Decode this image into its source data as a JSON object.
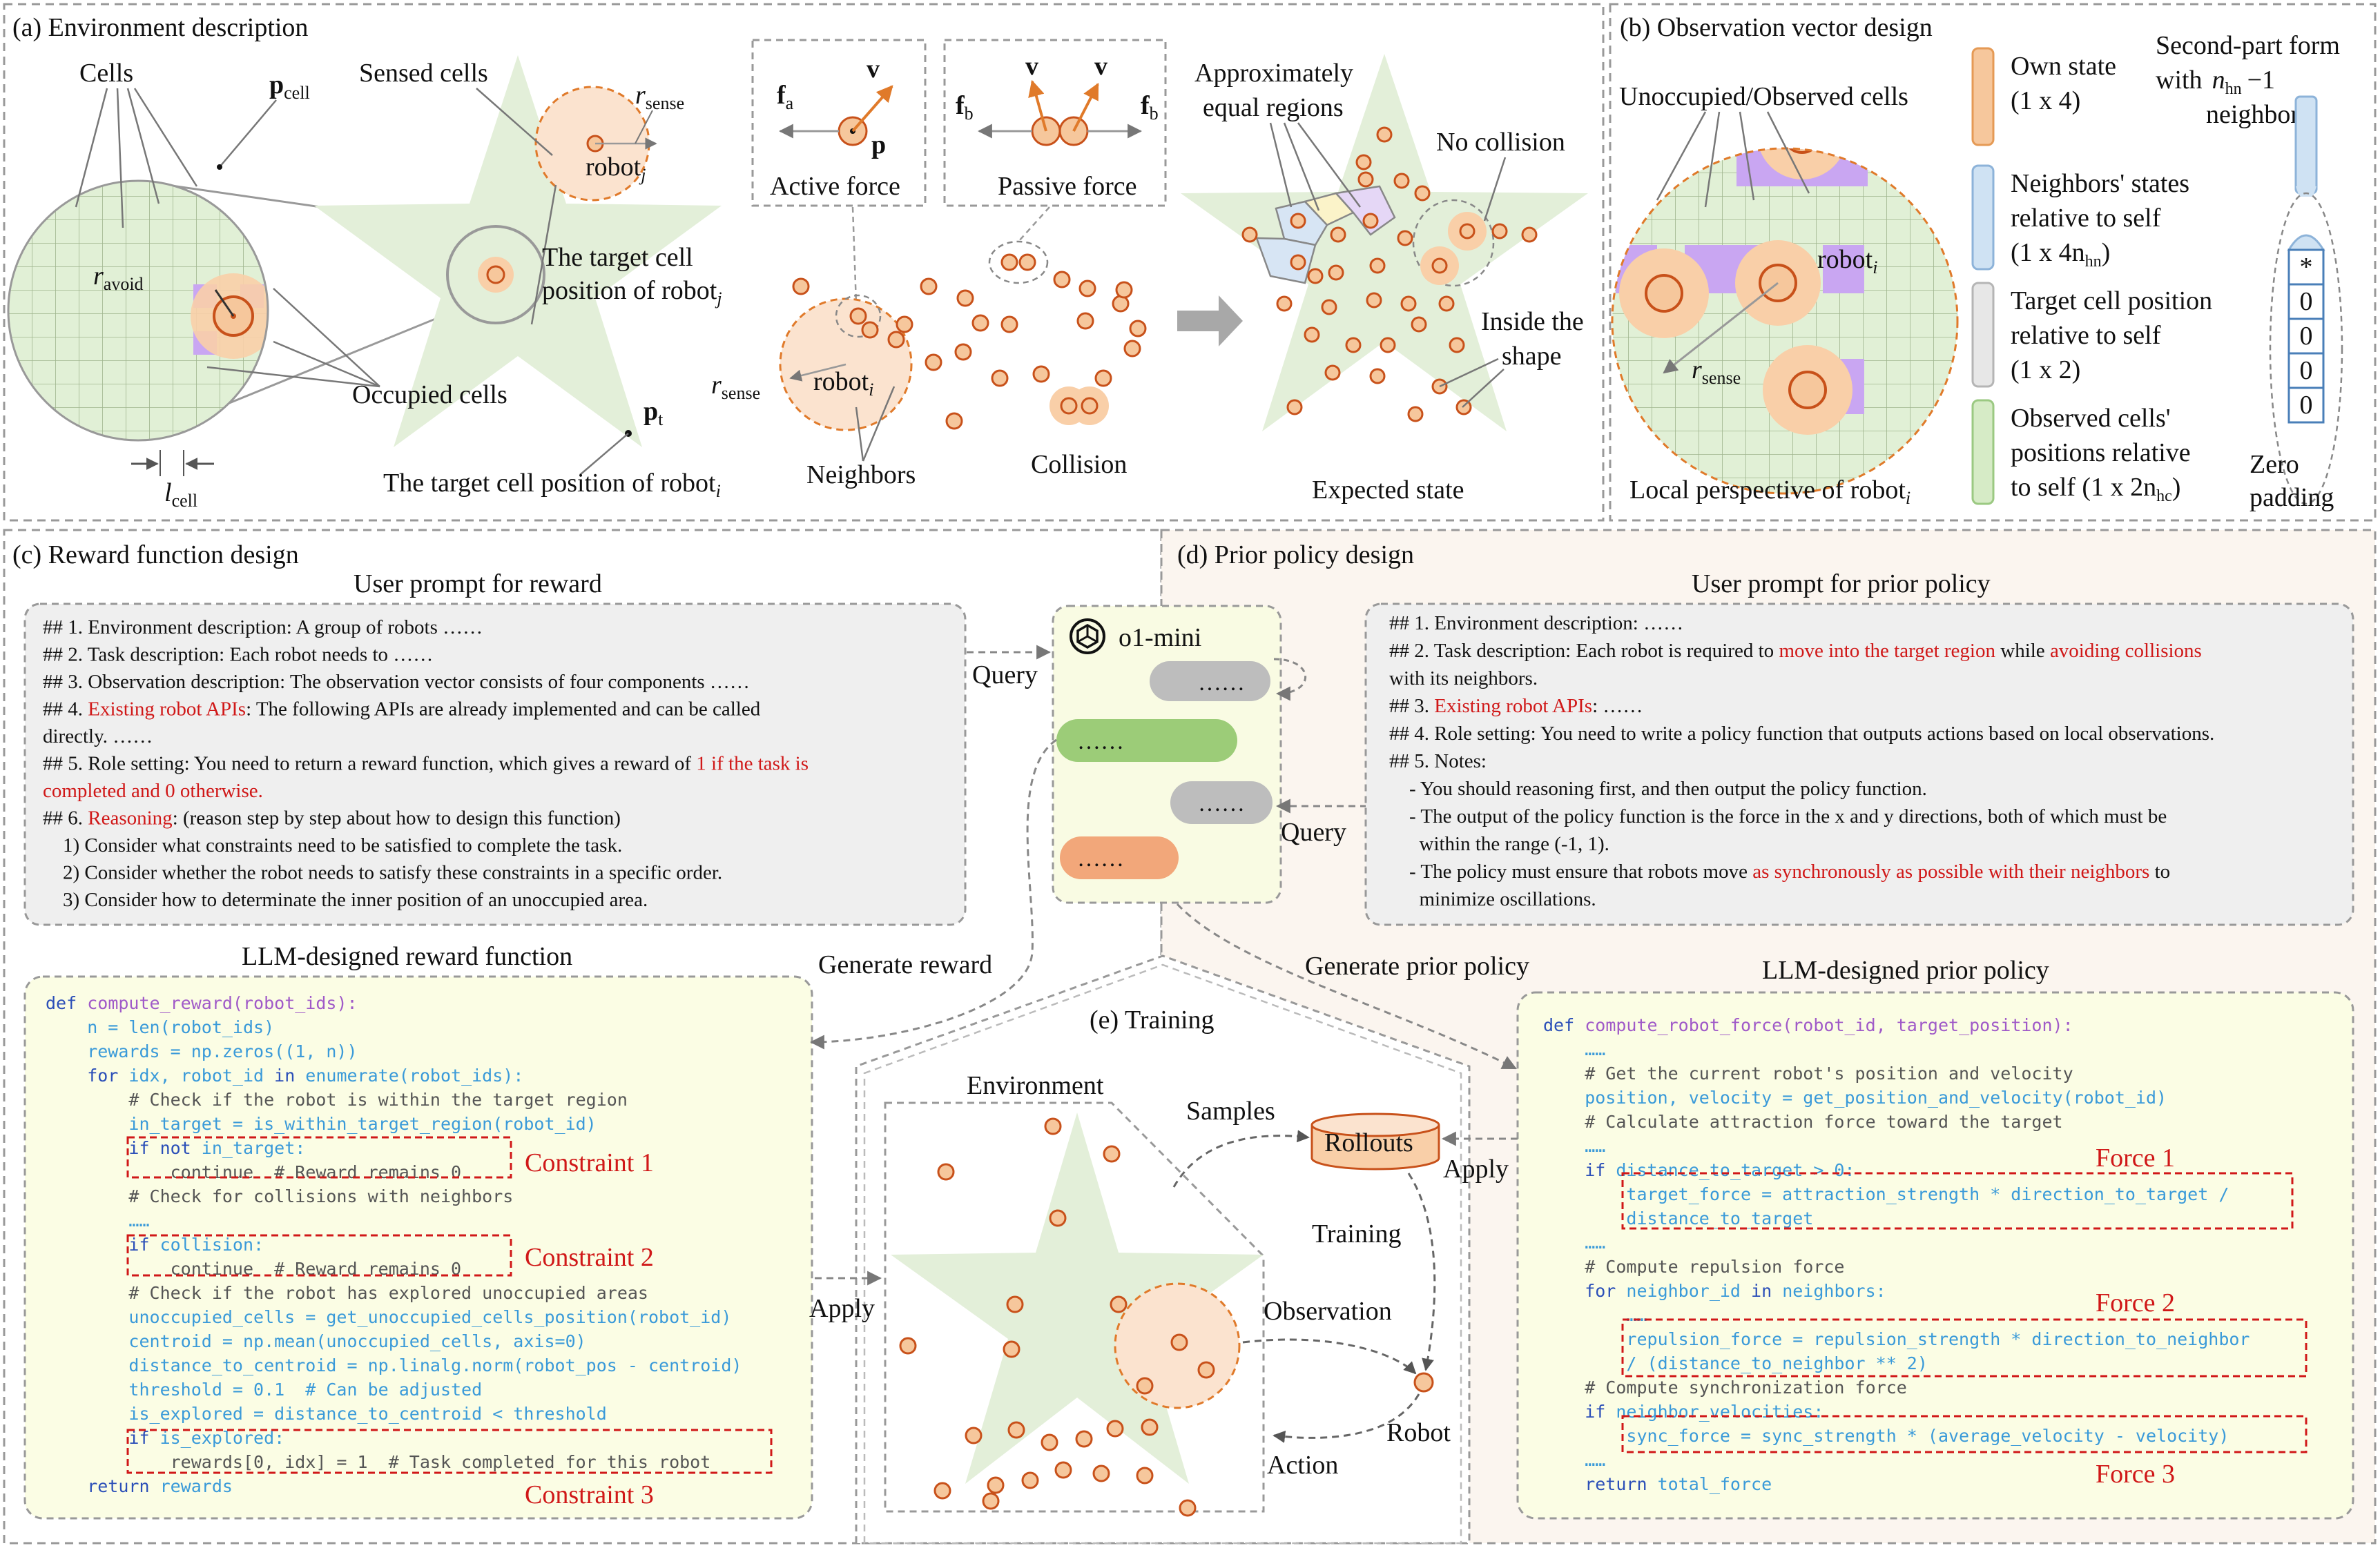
{
  "panel_a": {
    "title": "(a) Environment description",
    "cells": "Cells",
    "p_cell": "p",
    "p_cell_sub": "cell",
    "r_avoid": "r",
    "r_avoid_sub": "avoid",
    "l_cell": "l",
    "l_cell_sub": "cell",
    "occupied": "Occupied cells",
    "sensed": "Sensed cells",
    "r_sense": "r",
    "r_sense_sub": "sense",
    "robot_j": "robot",
    "robot_j_sub": "j",
    "target_j_1": "The target cell",
    "target_j_2": "position of robot",
    "target_j_sub": "j",
    "p_t": "p",
    "p_t_sub": "t",
    "target_i": "The target cell position of robot",
    "target_i_sub": "i",
    "active_force": "Active force",
    "passive_force": "Passive force",
    "f_a": "f",
    "f_a_sub": "a",
    "f_b": "f",
    "f_b_sub": "b",
    "v": "v",
    "p": "p",
    "robot_i": "robot",
    "robot_i_sub": "i",
    "neighbors": "Neighbors",
    "collision": "Collision",
    "approx_1": "Approximately",
    "approx_2": "equal regions",
    "no_collision": "No collision",
    "inside_1": "Inside the",
    "inside_2": "shape",
    "expected": "Expected state"
  },
  "panel_b": {
    "title": "(b) Observation vector design",
    "unoccupied": "Unoccupied/Observed cells",
    "robot_i": "robot",
    "robot_i_sub": "i",
    "r_sense": "r",
    "r_sense_sub": "sense",
    "local": "Local perspective of robot",
    "local_sub": "i",
    "legend": [
      {
        "lines": [
          "Own state",
          "(1 x 4)"
        ],
        "color": "#f6c79c",
        "stroke": "#e59a55"
      },
      {
        "lines": [
          "Neighbors' states",
          "relative to self",
          "(1 x 4n"
        ],
        "tail": "hn",
        "color": "#cfe2f3",
        "stroke": "#8db3d9"
      },
      {
        "lines": [
          "Target cell position",
          "relative to self",
          "(1 x 2)"
        ],
        "color": "#e7e7e7",
        "stroke": "#b5b5b5"
      },
      {
        "lines": [
          "Observed cells'",
          "positions relative",
          "to self (1 x 2n"
        ],
        "tail": "hc",
        "color": "#d6ebc6",
        "stroke": "#9bc982"
      }
    ],
    "second_1": "Second-part form",
    "second_2": "with",
    "second_n": "n",
    "second_sub": "hn",
    "second_3": "−1",
    "second_4": "neighbors:",
    "zero_1": "Zero",
    "zero_2": "padding",
    "vector": [
      "*",
      "0",
      "0",
      "0",
      "0"
    ]
  },
  "panel_c": {
    "title": "(c) Reward function design",
    "prompt_title": "User prompt for reward",
    "prompt": [
      [
        {
          "t": "## 1. Environment description: A group of robots ……"
        }
      ],
      [
        {
          "t": "## 2. Task description: Each robot needs to ……"
        }
      ],
      [
        {
          "t": "## 3. Observation description: The observation vector consists of four components ……"
        }
      ],
      [
        {
          "t": "## 4. "
        },
        {
          "t": "Existing robot APIs",
          "r": true
        },
        {
          "t": ": The following APIs are already implemented and can be called"
        }
      ],
      [
        {
          "t": "directly. ……"
        }
      ],
      [
        {
          "t": "## 5. Role setting: You need to return a reward function, which gives a reward of "
        },
        {
          "t": "1 if the task is",
          "r": true
        }
      ],
      [
        {
          "t": "completed and 0 otherwise.",
          "r": true
        }
      ],
      [
        {
          "t": "## 6. "
        },
        {
          "t": "Reasoning",
          "r": true
        },
        {
          "t": ": (reason step by step about how to design this function)"
        }
      ],
      [
        {
          "t": "    1) Consider what constraints need to be satisfied to complete the task."
        }
      ],
      [
        {
          "t": "    2) Consider whether the robot needs to satisfy these constraints in a specific order."
        }
      ],
      [
        {
          "t": "    3) Consider how to determinate the inner position of an unoccupied area."
        }
      ]
    ],
    "code_title": "LLM-designed reward function",
    "code": [
      [
        {
          "t": "def ",
          "c": "kw"
        },
        {
          "t": "compute_reward(robot_ids):",
          "c": "fn"
        }
      ],
      [
        {
          "t": "    n = len(robot_ids)"
        }
      ],
      [
        {
          "t": "    rewards = np.zeros((1, n))"
        }
      ],
      [
        {
          "t": "    for ",
          "c": "kw"
        },
        {
          "t": "idx, robot_id "
        },
        {
          "t": "in ",
          "c": "kw"
        },
        {
          "t": "enumerate(robot_ids):"
        }
      ],
      [
        {
          "t": "        # Check if the robot is within the target region",
          "c": "cm"
        }
      ],
      [
        {
          "t": "        in_target = is_within_target_region(robot_id)"
        }
      ],
      [
        {
          "t": "        if ",
          "c": "kw"
        },
        {
          "t": "not ",
          "c": "kw"
        },
        {
          "t": "in_target:"
        }
      ],
      [
        {
          "t": "            continue  # Reward remains 0",
          "c": "cm"
        }
      ],
      [
        {
          "t": "        # Check for collisions with neighbors",
          "c": "cm"
        }
      ],
      [
        {
          "t": "        ……"
        }
      ],
      [
        {
          "t": "        if ",
          "c": "kw"
        },
        {
          "t": "collision:"
        }
      ],
      [
        {
          "t": "            continue  # Reward remains 0",
          "c": "cm"
        }
      ],
      [
        {
          "t": "        # Check if the robot has explored unoccupied areas",
          "c": "cm"
        }
      ],
      [
        {
          "t": "        unoccupied_cells = get_unoccupied_cells_position(robot_id)"
        }
      ],
      [
        {
          "t": "        centroid = np.mean(unoccupied_cells, axis=0)"
        }
      ],
      [
        {
          "t": "        distance_to_centroid = np.linalg.norm(robot_pos - centroid)"
        }
      ],
      [
        {
          "t": "        threshold = 0.1  # Can be adjusted"
        }
      ],
      [
        {
          "t": "        is_explored = distance_to_centroid < threshold"
        }
      ],
      [
        {
          "t": "        if ",
          "c": "kw"
        },
        {
          "t": "is_explored:"
        }
      ],
      [
        {
          "t": "            rewards[0, idx] = 1  # Task completed for this robot",
          "c": "cm"
        }
      ],
      [
        {
          "t": "    return ",
          "c": "kw"
        },
        {
          "t": "rewards"
        }
      ]
    ],
    "constraint_1": "Constraint 1",
    "constraint_2": "Constraint 2",
    "constraint_3": "Constraint 3"
  },
  "center": {
    "llm": "o1-mini",
    "query_left": "Query",
    "query_right": "Query",
    "ellipsis": "……",
    "gen_reward": "Generate reward",
    "gen_prior": "Generate prior policy"
  },
  "panel_d": {
    "title": "(d) Prior policy design",
    "prompt_title": "User prompt for prior policy",
    "prompt": [
      [
        {
          "t": "## 1. Environment description: ……"
        }
      ],
      [
        {
          "t": "## 2. Task description: Each robot is required to "
        },
        {
          "t": "move into the target region",
          "r": true
        },
        {
          "t": " while "
        },
        {
          "t": "avoiding collisions",
          "r": true
        }
      ],
      [
        {
          "t": "with its neighbors."
        }
      ],
      [
        {
          "t": "## 3. "
        },
        {
          "t": "Existing robot APIs",
          "r": true
        },
        {
          "t": ": ……"
        }
      ],
      [
        {
          "t": "## 4. Role setting: You need to write a policy function that outputs actions based on local observations."
        }
      ],
      [
        {
          "t": "## 5. Notes:"
        }
      ],
      [
        {
          "t": "    - You should reasoning first, and then output the policy function."
        }
      ],
      [
        {
          "t": "    - The output of the policy function is the force in the x and y directions, both of which must be"
        }
      ],
      [
        {
          "t": "      within the range (-1, 1)."
        }
      ],
      [
        {
          "t": "    - The policy must ensure that robots move "
        },
        {
          "t": "as synchronously as possible with their neighbors",
          "r": true
        },
        {
          "t": " to"
        }
      ],
      [
        {
          "t": "      minimize oscillations."
        }
      ]
    ],
    "code_title": "LLM-designed prior policy",
    "code": [
      [
        {
          "t": "def ",
          "c": "kw"
        },
        {
          "t": "compute_robot_force(robot_id, target_position):",
          "c": "fn"
        }
      ],
      [
        {
          "t": "    ……"
        }
      ],
      [
        {
          "t": "    # Get the current robot's position and velocity",
          "c": "cm"
        }
      ],
      [
        {
          "t": "    position, velocity = get_position_and_velocity(robot_id)"
        }
      ],
      [
        {
          "t": "    # Calculate attraction force toward the target",
          "c": "cm"
        }
      ],
      [
        {
          "t": "    ……"
        }
      ],
      [
        {
          "t": "    if ",
          "c": "kw"
        },
        {
          "t": "distance_to_target > 0:"
        }
      ],
      [
        {
          "t": "        target_force = attraction_strength * direction_to_target /"
        }
      ],
      [
        {
          "t": "        distance_to_target"
        }
      ],
      [
        {
          "t": "    ……"
        }
      ],
      [
        {
          "t": "    # Compute repulsion force",
          "c": "cm"
        }
      ],
      [
        {
          "t": "    for ",
          "c": "kw"
        },
        {
          "t": "neighbor_id "
        },
        {
          "t": "in ",
          "c": "kw"
        },
        {
          "t": "neighbors:"
        }
      ],
      [
        {
          "t": "        ……"
        }
      ],
      [
        {
          "t": "        repulsion_force = repulsion_strength * direction_to_neighbor"
        }
      ],
      [
        {
          "t": "        / (distance_to_neighbor ** 2)"
        }
      ],
      [
        {
          "t": "    # Compute synchronization force",
          "c": "cm"
        }
      ],
      [
        {
          "t": "    if ",
          "c": "kw"
        },
        {
          "t": "neighbor_velocities:"
        }
      ],
      [
        {
          "t": "        sync_force = sync_strength * (average_velocity - velocity)"
        }
      ],
      [
        {
          "t": "    ……"
        }
      ],
      [
        {
          "t": "    return ",
          "c": "kw"
        },
        {
          "t": "total_force"
        }
      ]
    ],
    "force_1": "Force 1",
    "force_2": "Force 2",
    "force_3": "Force 3"
  },
  "panel_e": {
    "title": "(e) Training",
    "environment": "Environment",
    "samples": "Samples",
    "rollouts": "Rollouts",
    "training": "Training",
    "observation": "Observation",
    "robot": "Robot",
    "action": "Action",
    "apply_left": "Apply",
    "apply_right": "Apply"
  },
  "colors": {
    "star": "#e3efd9",
    "robot_fill": "#f6c79c",
    "robot_stroke": "#c8511a",
    "halo": "#f9cfa8",
    "grid": "#e1f0d6",
    "gridline": "#9fb58e",
    "purple": "#c9a6f2",
    "code_bg": "#fbfde4",
    "prompt_bg": "#efefef",
    "panel_d_bg": "#fbf5ef",
    "llm_bg": "#f9fbe3"
  }
}
